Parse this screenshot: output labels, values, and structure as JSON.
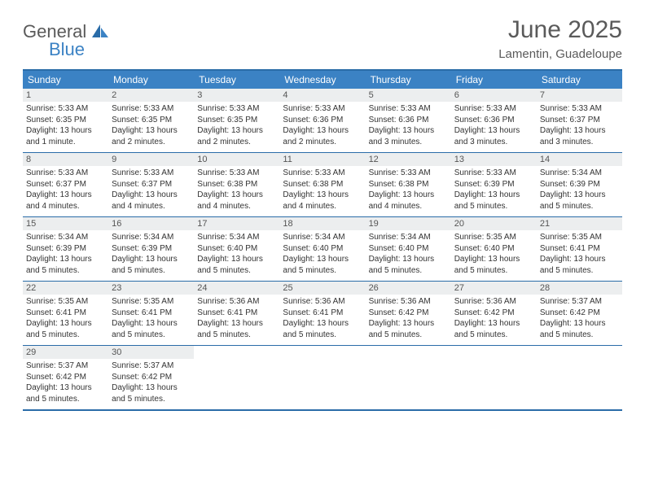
{
  "logo": {
    "general": "General",
    "blue": "Blue"
  },
  "title": "June 2025",
  "location": "Lamentin, Guadeloupe",
  "colors": {
    "header_bg": "#3b82c4",
    "header_text": "#ffffff",
    "border": "#2a6ca8",
    "daynum_bg": "#eceeef",
    "text": "#333333",
    "title_color": "#5a5a5a"
  },
  "weekdays": [
    "Sunday",
    "Monday",
    "Tuesday",
    "Wednesday",
    "Thursday",
    "Friday",
    "Saturday"
  ],
  "weeks": [
    [
      {
        "n": "1",
        "sr": "Sunrise: 5:33 AM",
        "ss": "Sunset: 6:35 PM",
        "dl1": "Daylight: 13 hours",
        "dl2": "and 1 minute."
      },
      {
        "n": "2",
        "sr": "Sunrise: 5:33 AM",
        "ss": "Sunset: 6:35 PM",
        "dl1": "Daylight: 13 hours",
        "dl2": "and 2 minutes."
      },
      {
        "n": "3",
        "sr": "Sunrise: 5:33 AM",
        "ss": "Sunset: 6:35 PM",
        "dl1": "Daylight: 13 hours",
        "dl2": "and 2 minutes."
      },
      {
        "n": "4",
        "sr": "Sunrise: 5:33 AM",
        "ss": "Sunset: 6:36 PM",
        "dl1": "Daylight: 13 hours",
        "dl2": "and 2 minutes."
      },
      {
        "n": "5",
        "sr": "Sunrise: 5:33 AM",
        "ss": "Sunset: 6:36 PM",
        "dl1": "Daylight: 13 hours",
        "dl2": "and 3 minutes."
      },
      {
        "n": "6",
        "sr": "Sunrise: 5:33 AM",
        "ss": "Sunset: 6:36 PM",
        "dl1": "Daylight: 13 hours",
        "dl2": "and 3 minutes."
      },
      {
        "n": "7",
        "sr": "Sunrise: 5:33 AM",
        "ss": "Sunset: 6:37 PM",
        "dl1": "Daylight: 13 hours",
        "dl2": "and 3 minutes."
      }
    ],
    [
      {
        "n": "8",
        "sr": "Sunrise: 5:33 AM",
        "ss": "Sunset: 6:37 PM",
        "dl1": "Daylight: 13 hours",
        "dl2": "and 4 minutes."
      },
      {
        "n": "9",
        "sr": "Sunrise: 5:33 AM",
        "ss": "Sunset: 6:37 PM",
        "dl1": "Daylight: 13 hours",
        "dl2": "and 4 minutes."
      },
      {
        "n": "10",
        "sr": "Sunrise: 5:33 AM",
        "ss": "Sunset: 6:38 PM",
        "dl1": "Daylight: 13 hours",
        "dl2": "and 4 minutes."
      },
      {
        "n": "11",
        "sr": "Sunrise: 5:33 AM",
        "ss": "Sunset: 6:38 PM",
        "dl1": "Daylight: 13 hours",
        "dl2": "and 4 minutes."
      },
      {
        "n": "12",
        "sr": "Sunrise: 5:33 AM",
        "ss": "Sunset: 6:38 PM",
        "dl1": "Daylight: 13 hours",
        "dl2": "and 4 minutes."
      },
      {
        "n": "13",
        "sr": "Sunrise: 5:33 AM",
        "ss": "Sunset: 6:39 PM",
        "dl1": "Daylight: 13 hours",
        "dl2": "and 5 minutes."
      },
      {
        "n": "14",
        "sr": "Sunrise: 5:34 AM",
        "ss": "Sunset: 6:39 PM",
        "dl1": "Daylight: 13 hours",
        "dl2": "and 5 minutes."
      }
    ],
    [
      {
        "n": "15",
        "sr": "Sunrise: 5:34 AM",
        "ss": "Sunset: 6:39 PM",
        "dl1": "Daylight: 13 hours",
        "dl2": "and 5 minutes."
      },
      {
        "n": "16",
        "sr": "Sunrise: 5:34 AM",
        "ss": "Sunset: 6:39 PM",
        "dl1": "Daylight: 13 hours",
        "dl2": "and 5 minutes."
      },
      {
        "n": "17",
        "sr": "Sunrise: 5:34 AM",
        "ss": "Sunset: 6:40 PM",
        "dl1": "Daylight: 13 hours",
        "dl2": "and 5 minutes."
      },
      {
        "n": "18",
        "sr": "Sunrise: 5:34 AM",
        "ss": "Sunset: 6:40 PM",
        "dl1": "Daylight: 13 hours",
        "dl2": "and 5 minutes."
      },
      {
        "n": "19",
        "sr": "Sunrise: 5:34 AM",
        "ss": "Sunset: 6:40 PM",
        "dl1": "Daylight: 13 hours",
        "dl2": "and 5 minutes."
      },
      {
        "n": "20",
        "sr": "Sunrise: 5:35 AM",
        "ss": "Sunset: 6:40 PM",
        "dl1": "Daylight: 13 hours",
        "dl2": "and 5 minutes."
      },
      {
        "n": "21",
        "sr": "Sunrise: 5:35 AM",
        "ss": "Sunset: 6:41 PM",
        "dl1": "Daylight: 13 hours",
        "dl2": "and 5 minutes."
      }
    ],
    [
      {
        "n": "22",
        "sr": "Sunrise: 5:35 AM",
        "ss": "Sunset: 6:41 PM",
        "dl1": "Daylight: 13 hours",
        "dl2": "and 5 minutes."
      },
      {
        "n": "23",
        "sr": "Sunrise: 5:35 AM",
        "ss": "Sunset: 6:41 PM",
        "dl1": "Daylight: 13 hours",
        "dl2": "and 5 minutes."
      },
      {
        "n": "24",
        "sr": "Sunrise: 5:36 AM",
        "ss": "Sunset: 6:41 PM",
        "dl1": "Daylight: 13 hours",
        "dl2": "and 5 minutes."
      },
      {
        "n": "25",
        "sr": "Sunrise: 5:36 AM",
        "ss": "Sunset: 6:41 PM",
        "dl1": "Daylight: 13 hours",
        "dl2": "and 5 minutes."
      },
      {
        "n": "26",
        "sr": "Sunrise: 5:36 AM",
        "ss": "Sunset: 6:42 PM",
        "dl1": "Daylight: 13 hours",
        "dl2": "and 5 minutes."
      },
      {
        "n": "27",
        "sr": "Sunrise: 5:36 AM",
        "ss": "Sunset: 6:42 PM",
        "dl1": "Daylight: 13 hours",
        "dl2": "and 5 minutes."
      },
      {
        "n": "28",
        "sr": "Sunrise: 5:37 AM",
        "ss": "Sunset: 6:42 PM",
        "dl1": "Daylight: 13 hours",
        "dl2": "and 5 minutes."
      }
    ],
    [
      {
        "n": "29",
        "sr": "Sunrise: 5:37 AM",
        "ss": "Sunset: 6:42 PM",
        "dl1": "Daylight: 13 hours",
        "dl2": "and 5 minutes."
      },
      {
        "n": "30",
        "sr": "Sunrise: 5:37 AM",
        "ss": "Sunset: 6:42 PM",
        "dl1": "Daylight: 13 hours",
        "dl2": "and 5 minutes."
      },
      null,
      null,
      null,
      null,
      null
    ]
  ]
}
